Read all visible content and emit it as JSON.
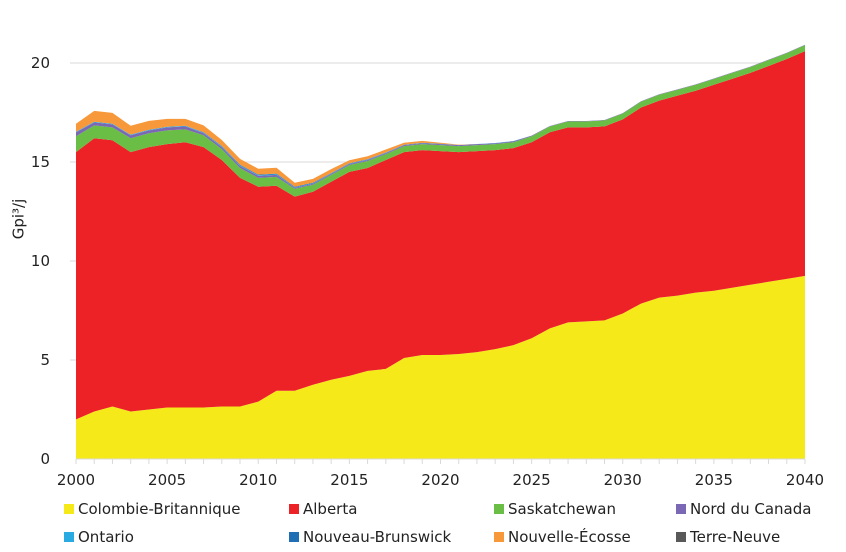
{
  "chart_data": {
    "type": "area",
    "stacked": true,
    "title": "",
    "xlabel": "",
    "ylabel": "Gpi³/j",
    "xlim": [
      2000,
      2040
    ],
    "ylim": [
      0,
      20
    ],
    "yticks": [
      0,
      5,
      10,
      15,
      20
    ],
    "xticks": [
      2000,
      2005,
      2010,
      2015,
      2020,
      2025,
      2030,
      2035,
      2040
    ],
    "grid": "horizontal",
    "legend_position": "bottom",
    "x": [
      2000,
      2001,
      2002,
      2003,
      2004,
      2005,
      2006,
      2007,
      2008,
      2009,
      2010,
      2011,
      2012,
      2013,
      2014,
      2015,
      2016,
      2017,
      2018,
      2019,
      2020,
      2021,
      2022,
      2023,
      2024,
      2025,
      2026,
      2027,
      2028,
      2029,
      2030,
      2031,
      2032,
      2033,
      2034,
      2035,
      2036,
      2037,
      2038,
      2039,
      2040
    ],
    "series": [
      {
        "name": "Colombie-Britannique",
        "color": "#f5e91a",
        "values": [
          2.0,
          2.4,
          2.65,
          2.4,
          2.5,
          2.6,
          2.6,
          2.6,
          2.65,
          2.65,
          2.9,
          3.45,
          3.45,
          3.75,
          4.0,
          4.2,
          4.45,
          4.55,
          5.1,
          5.25,
          5.25,
          5.3,
          5.4,
          5.55,
          5.75,
          6.1,
          6.6,
          6.9,
          6.95,
          7.0,
          7.35,
          7.85,
          8.15,
          8.25,
          8.4,
          8.5,
          8.65,
          8.8,
          8.95,
          9.1,
          9.25
        ]
      },
      {
        "name": "Alberta",
        "color": "#ec2227",
        "values": [
          13.5,
          13.8,
          13.45,
          13.1,
          13.25,
          13.3,
          13.4,
          13.15,
          12.45,
          11.55,
          10.85,
          10.35,
          9.8,
          9.75,
          10.0,
          10.3,
          10.25,
          10.55,
          10.4,
          10.35,
          10.3,
          10.2,
          10.15,
          10.05,
          9.95,
          9.9,
          9.9,
          9.85,
          9.8,
          9.8,
          9.8,
          9.9,
          9.95,
          10.1,
          10.2,
          10.4,
          10.55,
          10.7,
          10.9,
          11.1,
          11.35
        ]
      },
      {
        "name": "Saskatchewan",
        "color": "#6abd45",
        "values": [
          0.8,
          0.65,
          0.65,
          0.7,
          0.7,
          0.7,
          0.65,
          0.6,
          0.55,
          0.5,
          0.45,
          0.45,
          0.4,
          0.35,
          0.35,
          0.35,
          0.35,
          0.3,
          0.3,
          0.3,
          0.3,
          0.3,
          0.3,
          0.3,
          0.3,
          0.3,
          0.3,
          0.3,
          0.3,
          0.3,
          0.3,
          0.3,
          0.3,
          0.3,
          0.3,
          0.3,
          0.3,
          0.3,
          0.3,
          0.3,
          0.3
        ]
      },
      {
        "name": "Nord du Canada",
        "color": "#7b68b4",
        "values": [
          0.2,
          0.15,
          0.15,
          0.15,
          0.15,
          0.15,
          0.15,
          0.1,
          0.1,
          0.1,
          0.1,
          0.1,
          0.05,
          0.05,
          0.05,
          0.05,
          0.05,
          0.05,
          0.05,
          0.05,
          0.05,
          0.05,
          0.05,
          0.05,
          0.05,
          0.03,
          0.02,
          0.02,
          0.02,
          0.02,
          0.02,
          0.02,
          0.02,
          0.02,
          0.02,
          0.02,
          0.02,
          0.02,
          0.02,
          0.02,
          0.02
        ]
      },
      {
        "name": "Ontario",
        "color": "#29abe2",
        "values": [
          0.03,
          0.03,
          0.03,
          0.03,
          0.03,
          0.03,
          0.03,
          0.03,
          0.03,
          0.03,
          0.03,
          0.03,
          0.02,
          0.02,
          0.02,
          0.02,
          0.02,
          0.02,
          0.01,
          0.01,
          0.01,
          0.01,
          0.01,
          0.01,
          0.01,
          0,
          0,
          0,
          0,
          0,
          0,
          0,
          0,
          0,
          0,
          0,
          0,
          0,
          0,
          0,
          0
        ]
      },
      {
        "name": "Nouveau-Brunswick",
        "color": "#1f6fb5",
        "values": [
          0,
          0,
          0,
          0,
          0,
          0,
          0,
          0.02,
          0.03,
          0.03,
          0.03,
          0.03,
          0.03,
          0.03,
          0.02,
          0.02,
          0.02,
          0.01,
          0.01,
          0.01,
          0.01,
          0,
          0,
          0,
          0,
          0,
          0,
          0,
          0,
          0,
          0,
          0,
          0,
          0,
          0,
          0,
          0,
          0,
          0,
          0,
          0
        ]
      },
      {
        "name": "Nouvelle-Écosse",
        "color": "#f7983a",
        "values": [
          0.4,
          0.55,
          0.55,
          0.45,
          0.45,
          0.4,
          0.35,
          0.35,
          0.3,
          0.3,
          0.3,
          0.3,
          0.2,
          0.2,
          0.2,
          0.15,
          0.15,
          0.15,
          0.1,
          0.1,
          0.05,
          0.02,
          0,
          0,
          0,
          0,
          0,
          0,
          0,
          0,
          0,
          0,
          0,
          0,
          0,
          0,
          0,
          0,
          0,
          0,
          0
        ]
      },
      {
        "name": "Terre-Neuve",
        "color": "#595959",
        "values": [
          0,
          0,
          0,
          0,
          0,
          0,
          0,
          0,
          0,
          0,
          0,
          0,
          0,
          0,
          0,
          0,
          0,
          0,
          0,
          0,
          0,
          0,
          0,
          0,
          0,
          0,
          0,
          0,
          0,
          0,
          0,
          0,
          0,
          0,
          0,
          0,
          0,
          0,
          0,
          0,
          0
        ]
      }
    ]
  }
}
